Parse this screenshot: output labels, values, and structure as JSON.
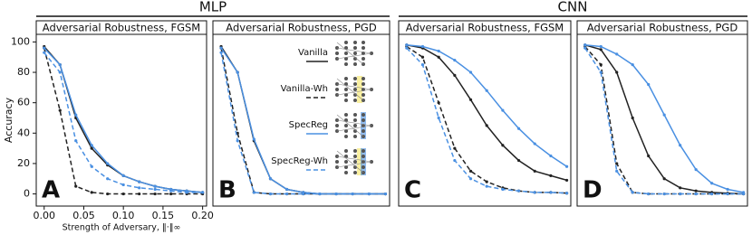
{
  "groups": [
    {
      "title": "MLP"
    },
    {
      "title": "CNN"
    }
  ],
  "chart_data": [
    {
      "type": "line",
      "title": "Adversarial Robustness, FGSM",
      "panel_label": "A",
      "y_label": "Accuracy",
      "x_label": "Strength of Adversary, ‖·‖∞",
      "x": [
        0,
        0.02,
        0.04,
        0.06,
        0.08,
        0.1,
        0.12,
        0.14,
        0.16,
        0.18,
        0.2
      ],
      "xlim": [
        -0.01,
        0.205
      ],
      "ylim": [
        -8,
        105
      ],
      "xticks": [
        {
          "value": 0,
          "label": "0.00"
        },
        {
          "value": 0.05,
          "label": "0.05"
        },
        {
          "value": 0.1,
          "label": "0.10"
        },
        {
          "value": 0.15,
          "label": "0.15"
        },
        {
          "value": 0.2,
          "label": "0.20"
        }
      ],
      "yticks": [
        0,
        20,
        40,
        60,
        80,
        100
      ],
      "series": [
        {
          "color": "#222222",
          "style": "solid",
          "values": [
            97,
            85,
            50,
            30,
            19,
            12,
            8,
            5,
            3,
            2,
            1
          ]
        },
        {
          "color": "#222222",
          "style": "dashed",
          "values": [
            96,
            55,
            5,
            1,
            0,
            0,
            0,
            0,
            0,
            0,
            0
          ]
        },
        {
          "color": "#4a90e2",
          "style": "solid",
          "values": [
            96,
            85,
            52,
            32,
            20,
            12,
            8,
            5,
            3,
            2,
            1
          ]
        },
        {
          "color": "#4a90e2",
          "style": "dashed",
          "values": [
            93,
            80,
            35,
            18,
            10,
            6,
            4,
            3,
            2,
            1,
            1
          ]
        }
      ]
    },
    {
      "type": "line",
      "title": "Adversarial Robustness, PGD",
      "panel_label": "B",
      "x": [
        0,
        0.02,
        0.04,
        0.06,
        0.08,
        0.1,
        0.12,
        0.14,
        0.16,
        0.18,
        0.2
      ],
      "xlim": [
        -0.01,
        0.205
      ],
      "ylim": [
        -8,
        105
      ],
      "series": [
        {
          "name": "Vanilla",
          "color": "#222222",
          "style": "solid",
          "values": [
            97,
            80,
            35,
            10,
            3,
            1,
            0,
            0,
            0,
            0,
            0
          ]
        },
        {
          "name": "Vanilla-Wh",
          "color": "#222222",
          "style": "dashed",
          "values": [
            96,
            40,
            1,
            0,
            0,
            0,
            0,
            0,
            0,
            0,
            0
          ]
        },
        {
          "name": "SpecReg",
          "color": "#4a90e2",
          "style": "solid",
          "values": [
            96,
            80,
            36,
            10,
            3,
            1,
            0,
            0,
            0,
            0,
            0
          ]
        },
        {
          "name": "SpecReg-Wh",
          "color": "#4a90e2",
          "style": "dashed",
          "values": [
            93,
            35,
            1,
            0,
            0,
            0,
            0,
            0,
            0,
            0,
            0
          ]
        }
      ]
    },
    {
      "type": "line",
      "title": "Adversarial Robustness, FGSM",
      "panel_label": "C",
      "x": [
        0,
        0.02,
        0.04,
        0.06,
        0.08,
        0.1,
        0.12,
        0.14,
        0.16,
        0.18,
        0.2
      ],
      "xlim": [
        -0.01,
        0.205
      ],
      "ylim": [
        -8,
        105
      ],
      "series": [
        {
          "color": "#222222",
          "style": "solid",
          "values": [
            98,
            96,
            90,
            78,
            62,
            45,
            32,
            22,
            15,
            12,
            9
          ]
        },
        {
          "color": "#222222",
          "style": "dashed",
          "values": [
            97,
            90,
            60,
            30,
            15,
            8,
            4,
            2,
            1,
            1,
            0.5
          ]
        },
        {
          "color": "#4a90e2",
          "style": "solid",
          "values": [
            98,
            97,
            94,
            88,
            80,
            68,
            55,
            43,
            33,
            25,
            18
          ]
        },
        {
          "color": "#4a90e2",
          "style": "dashed",
          "values": [
            96,
            85,
            50,
            22,
            10,
            5,
            3,
            2,
            1,
            1,
            0.5
          ]
        }
      ]
    },
    {
      "type": "line",
      "title": "Adversarial Robustness, PGD",
      "panel_label": "D",
      "x": [
        0,
        0.02,
        0.04,
        0.06,
        0.08,
        0.1,
        0.12,
        0.14,
        0.16,
        0.18,
        0.2
      ],
      "xlim": [
        -0.01,
        0.205
      ],
      "ylim": [
        -8,
        105
      ],
      "series": [
        {
          "color": "#222222",
          "style": "solid",
          "values": [
            98,
            95,
            80,
            50,
            25,
            10,
            4,
            2,
            1,
            0.5,
            0
          ]
        },
        {
          "color": "#222222",
          "style": "dashed",
          "values": [
            97,
            85,
            20,
            1,
            0,
            0,
            0,
            0,
            0,
            0,
            0
          ]
        },
        {
          "color": "#4a90e2",
          "style": "solid",
          "values": [
            98,
            97,
            92,
            85,
            72,
            52,
            32,
            16,
            7,
            3,
            1
          ]
        },
        {
          "color": "#4a90e2",
          "style": "dashed",
          "values": [
            96,
            80,
            15,
            1,
            0,
            0,
            0,
            0,
            0,
            0,
            0
          ]
        }
      ]
    }
  ]
}
